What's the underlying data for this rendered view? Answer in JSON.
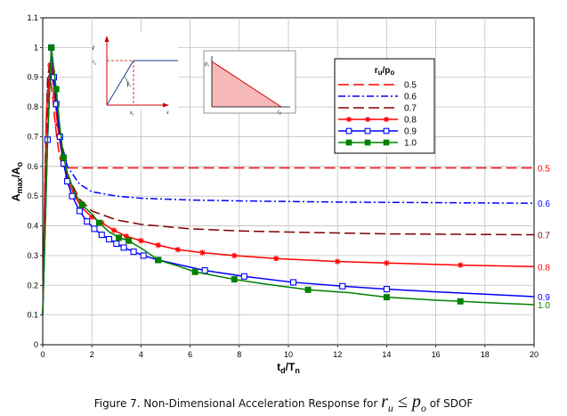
{
  "chart_data": {
    "type": "line",
    "xlabel_main": "t",
    "xlabel_sub1": "d",
    "xlabel_slash": "/T",
    "xlabel_sub2": "n",
    "ylabel_main": "A",
    "ylabel_sub1": "max",
    "ylabel_slash": "/A",
    "ylabel_sub2": "o",
    "xlim": [
      0,
      20
    ],
    "ylim": [
      0,
      1.1
    ],
    "xticks": [
      "0",
      "2",
      "4",
      "6",
      "8",
      "10",
      "12",
      "14",
      "16",
      "18",
      "20"
    ],
    "yticks": [
      "0",
      "0.1",
      "0.2",
      "0.3",
      "0.4",
      "0.5",
      "0.6",
      "0.7",
      "0.8",
      "0.9",
      "1",
      "1.1"
    ],
    "grid": true,
    "legend_title_main": "r",
    "legend_title_sub1": "u",
    "legend_title_slash": "/p",
    "legend_title_sub2": "o",
    "legend_position": "top-right",
    "series": [
      {
        "name": "0.5",
        "end_label": "0.5",
        "color": "#ff0000",
        "dash": "12,5",
        "marker": "none",
        "x": [
          0,
          0.1,
          0.2,
          0.3,
          0.4,
          0.5,
          0.6,
          0.7,
          0.8,
          1.0,
          20
        ],
        "y": [
          0.1,
          0.5,
          0.8,
          0.9,
          0.84,
          0.75,
          0.68,
          0.63,
          0.6,
          0.595,
          0.595
        ]
      },
      {
        "name": "0.6",
        "end_label": "0.6",
        "color": "#0000ff",
        "dash": "8,3,2,3",
        "marker": "none",
        "x": [
          0,
          0.1,
          0.2,
          0.3,
          0.4,
          0.5,
          0.7,
          1.0,
          1.5,
          2,
          3,
          4,
          6,
          8,
          10,
          12,
          14,
          16,
          18,
          20
        ],
        "y": [
          0.1,
          0.6,
          0.88,
          0.93,
          0.9,
          0.82,
          0.7,
          0.6,
          0.54,
          0.515,
          0.5,
          0.493,
          0.487,
          0.484,
          0.482,
          0.48,
          0.479,
          0.478,
          0.477,
          0.476
        ]
      },
      {
        "name": "0.7",
        "end_label": "0.7",
        "color": "#800000",
        "dash": "12,5",
        "marker": "none",
        "x": [
          0,
          0.1,
          0.2,
          0.3,
          0.4,
          0.5,
          0.7,
          1.0,
          1.5,
          2,
          3,
          4,
          6,
          8,
          10,
          12,
          14,
          16,
          18,
          20
        ],
        "y": [
          0.1,
          0.6,
          0.9,
          0.95,
          0.92,
          0.82,
          0.68,
          0.57,
          0.49,
          0.45,
          0.42,
          0.405,
          0.39,
          0.383,
          0.379,
          0.376,
          0.373,
          0.372,
          0.371,
          0.37
        ]
      },
      {
        "name": "0.8",
        "end_label": "0.8",
        "color": "#ff0000",
        "dash": "",
        "marker": "star",
        "x": [
          0,
          0.15,
          0.3,
          0.4,
          0.5,
          0.6,
          0.8,
          1.0,
          1.3,
          1.6,
          2,
          2.4,
          2.9,
          3.4,
          4,
          4.7,
          5.5,
          6.5,
          7.8,
          9.5,
          12,
          14,
          17,
          20
        ],
        "y": [
          0.1,
          0.78,
          0.94,
          0.92,
          0.84,
          0.74,
          0.63,
          0.56,
          0.5,
          0.46,
          0.43,
          0.41,
          0.385,
          0.365,
          0.35,
          0.335,
          0.32,
          0.31,
          0.3,
          0.29,
          0.28,
          0.275,
          0.268,
          0.263
        ],
        "marker_x": [
          0.3,
          0.4,
          0.5,
          0.6,
          0.8,
          1.0,
          1.3,
          1.6,
          2,
          2.4,
          2.9,
          3.4,
          4,
          4.7,
          5.5,
          6.5,
          7.8,
          9.5,
          12,
          14,
          17
        ],
        "marker_y": [
          0.94,
          0.92,
          0.84,
          0.74,
          0.63,
          0.56,
          0.5,
          0.46,
          0.43,
          0.41,
          0.385,
          0.365,
          0.35,
          0.335,
          0.32,
          0.31,
          0.3,
          0.29,
          0.28,
          0.275,
          0.268
        ]
      },
      {
        "name": "0.9",
        "end_label": "0.9",
        "color": "#0000ff",
        "dash": "",
        "marker": "square",
        "x": [
          0,
          0.2,
          0.35,
          0.45,
          0.55,
          0.7,
          0.85,
          1.0,
          1.2,
          1.5,
          1.8,
          2.1,
          2.4,
          2.7,
          3.0,
          3.3,
          3.7,
          4.1,
          4.7,
          5.5,
          6.6,
          8.2,
          10.2,
          12.2,
          14.0,
          16,
          18,
          20
        ],
        "y": [
          0.1,
          0.69,
          1.0,
          0.9,
          0.81,
          0.7,
          0.61,
          0.55,
          0.5,
          0.45,
          0.415,
          0.39,
          0.37,
          0.355,
          0.34,
          0.327,
          0.313,
          0.3,
          0.285,
          0.27,
          0.25,
          0.23,
          0.21,
          0.197,
          0.187,
          0.178,
          0.17,
          0.162
        ],
        "marker_x": [
          0.2,
          0.35,
          0.45,
          0.55,
          0.7,
          0.85,
          1.0,
          1.2,
          1.5,
          1.8,
          2.1,
          2.4,
          2.7,
          3.0,
          3.3,
          3.7,
          4.1,
          4.7,
          6.6,
          8.2,
          10.2,
          12.2,
          14.0
        ],
        "marker_y": [
          0.69,
          1.0,
          0.9,
          0.81,
          0.7,
          0.61,
          0.55,
          0.5,
          0.45,
          0.415,
          0.39,
          0.37,
          0.355,
          0.34,
          0.327,
          0.313,
          0.3,
          0.285,
          0.25,
          0.23,
          0.21,
          0.197,
          0.187
        ]
      },
      {
        "name": "1.0",
        "end_label": "1.0",
        "color": "#008000",
        "dash": "",
        "marker": "filledsquare",
        "x": [
          0,
          0.2,
          0.35,
          0.45,
          0.55,
          0.7,
          0.85,
          1.0,
          1.3,
          1.6,
          2.0,
          2.3,
          2.7,
          3.1,
          3.5,
          4.1,
          4.7,
          5.5,
          6.2,
          7.8,
          9.0,
          10.8,
          12.5,
          14.0,
          16.0,
          17.0,
          18.5,
          20
        ],
        "y": [
          0.1,
          0.7,
          1.0,
          0.93,
          0.86,
          0.73,
          0.63,
          0.58,
          0.51,
          0.47,
          0.44,
          0.41,
          0.38,
          0.36,
          0.35,
          0.32,
          0.285,
          0.265,
          0.245,
          0.22,
          0.205,
          0.185,
          0.175,
          0.16,
          0.15,
          0.146,
          0.14,
          0.135
        ],
        "marker_x": [
          0.35,
          0.55,
          0.85,
          1.6,
          2.3,
          3.1,
          3.5,
          4.7,
          6.2,
          7.8,
          10.8,
          14.0,
          17.0
        ],
        "marker_y": [
          1.0,
          0.86,
          0.63,
          0.47,
          0.41,
          0.36,
          0.35,
          0.285,
          0.245,
          0.22,
          0.185,
          0.16,
          0.146
        ]
      }
    ]
  },
  "inset1": {
    "ylabel": "r",
    "ylabel_sub": "u",
    "xlabel": "x",
    "xlabel_sub": "e",
    "slope": "k",
    "slope_sub": "e",
    "axis_x": "x"
  },
  "inset2": {
    "ylabel": "p",
    "ylabel_sub": "o",
    "xlabel": "t",
    "xlabel_sub": "d"
  },
  "caption": {
    "prefix": "Figure 7. Non-Dimensional Acceleration Response for ",
    "math_r": "r",
    "math_u": "u",
    "math_le": " ≤ ",
    "math_p": "p",
    "math_o": "o",
    "suffix": " of SDOF"
  }
}
